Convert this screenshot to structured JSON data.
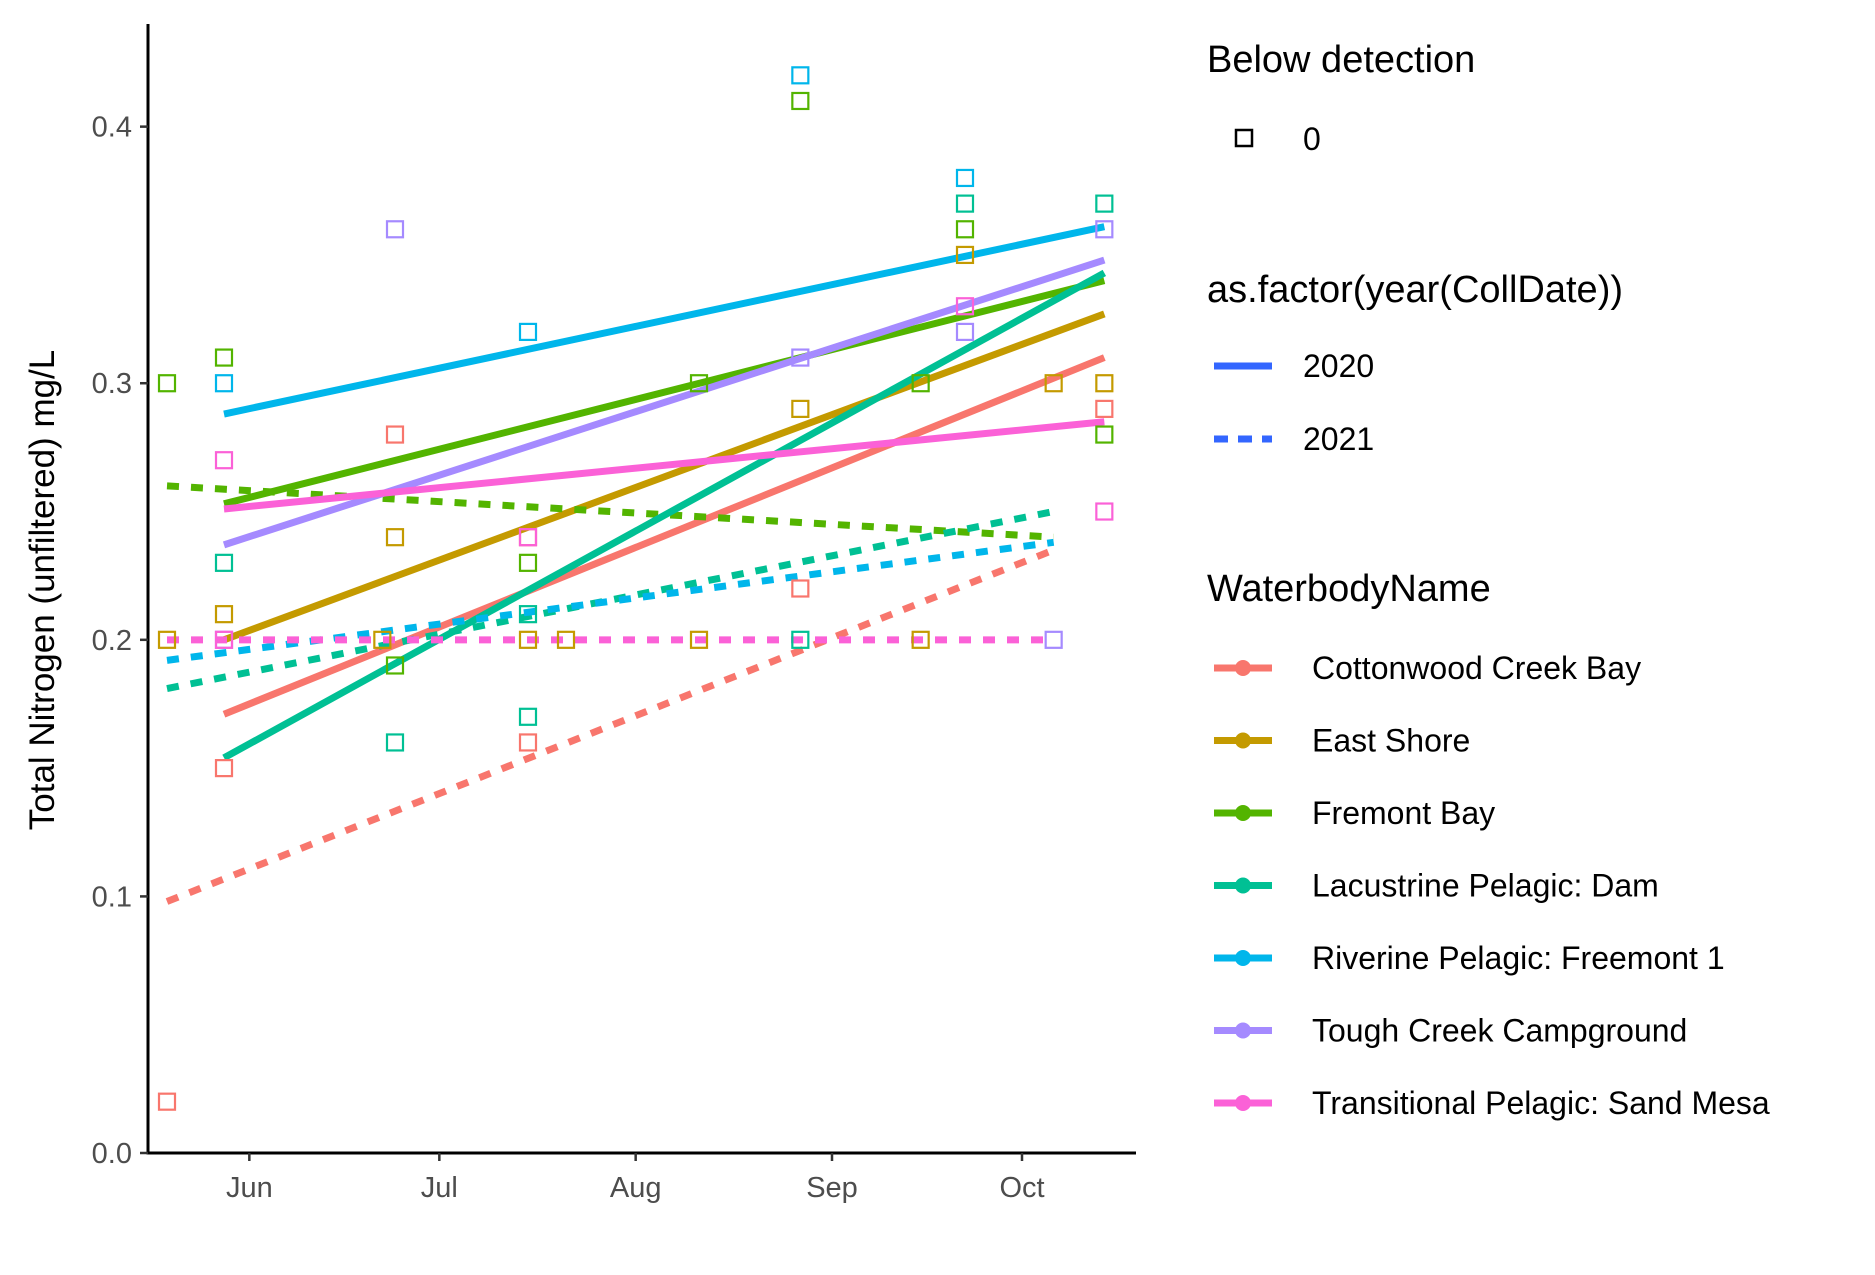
{
  "chart_data": {
    "type": "scatter",
    "title": "",
    "xlabel": "",
    "ylabel": "Total Nitrogen (unfiltered) mg/L",
    "x_ticks": [
      "Jun",
      "Jul",
      "Aug",
      "Sep",
      "Oct"
    ],
    "x_tick_dates": [
      "2020-06-01",
      "2020-07-01",
      "2020-08-01",
      "2020-09-01",
      "2020-10-01"
    ],
    "xlim": [
      "2020-05-16",
      "2020-10-19"
    ],
    "y_ticks": [
      "0.0",
      "0.1",
      "0.2",
      "0.3",
      "0.4"
    ],
    "ylim": [
      0,
      0.44
    ],
    "grid": false,
    "legend_placement": "right",
    "legends": {
      "shape": {
        "title": "Below detection",
        "entries": [
          "0"
        ]
      },
      "linetype": {
        "title": "as.factor(year(CollDate))",
        "entries": [
          "2020",
          "2021"
        ],
        "color": "#3366FF"
      },
      "colour": {
        "title": "WaterbodyName"
      }
    },
    "series": [
      {
        "name": "Cottonwood Creek Bay",
        "color": "#F8766D",
        "points": [
          [
            "2020-05-19",
            0.02
          ],
          [
            "2020-05-28",
            0.15
          ],
          [
            "2020-06-24",
            0.28
          ],
          [
            "2020-07-15",
            0.16
          ],
          [
            "2020-07-15",
            0.24
          ],
          [
            "2020-08-27",
            0.22
          ],
          [
            "2020-10-14",
            0.29
          ]
        ],
        "fit_2020": [
          [
            "2020-05-28",
            0.171
          ],
          [
            "2020-10-14",
            0.31
          ]
        ],
        "fit_2021": [
          [
            "2020-05-19",
            0.098
          ],
          [
            "2020-10-06",
            0.235
          ]
        ]
      },
      {
        "name": "East Shore",
        "color": "#C49A00",
        "points": [
          [
            "2020-05-19",
            0.2
          ],
          [
            "2020-05-28",
            0.21
          ],
          [
            "2020-06-24",
            0.24
          ],
          [
            "2020-06-22",
            0.2
          ],
          [
            "2020-07-15",
            0.2
          ],
          [
            "2020-07-21",
            0.2
          ],
          [
            "2020-08-11",
            0.2
          ],
          [
            "2020-08-27",
            0.29
          ],
          [
            "2020-09-15",
            0.2
          ],
          [
            "2020-09-22",
            0.35
          ],
          [
            "2020-10-06",
            0.3
          ],
          [
            "2020-10-14",
            0.3
          ]
        ],
        "fit_2020": [
          [
            "2020-05-28",
            0.2
          ],
          [
            "2020-10-14",
            0.327
          ]
        ]
      },
      {
        "name": "Fremont Bay",
        "color": "#53B400",
        "points": [
          [
            "2020-05-19",
            0.3
          ],
          [
            "2020-05-28",
            0.31
          ],
          [
            "2020-06-24",
            0.19
          ],
          [
            "2020-07-15",
            0.23
          ],
          [
            "2020-08-11",
            0.3
          ],
          [
            "2020-08-27",
            0.41
          ],
          [
            "2020-09-15",
            0.3
          ],
          [
            "2020-09-22",
            0.36
          ],
          [
            "2020-10-14",
            0.28
          ]
        ],
        "fit_2020": [
          [
            "2020-05-28",
            0.253
          ],
          [
            "2020-10-14",
            0.34
          ]
        ],
        "fit_2021": [
          [
            "2020-05-19",
            0.26
          ],
          [
            "2020-10-06",
            0.24
          ]
        ]
      },
      {
        "name": "Lacustrine Pelagic: Dam",
        "color": "#00C094",
        "points": [
          [
            "2020-05-28",
            0.23
          ],
          [
            "2020-06-24",
            0.16
          ],
          [
            "2020-07-15",
            0.17
          ],
          [
            "2020-07-15",
            0.21
          ],
          [
            "2020-08-27",
            0.2
          ],
          [
            "2020-09-22",
            0.37
          ],
          [
            "2020-10-14",
            0.37
          ]
        ],
        "fit_2020": [
          [
            "2020-05-28",
            0.154
          ],
          [
            "2020-10-14",
            0.343
          ]
        ],
        "fit_2021": [
          [
            "2020-05-19",
            0.181
          ],
          [
            "2020-10-06",
            0.25
          ]
        ]
      },
      {
        "name": "Riverine Pelagic: Freemont 1",
        "color": "#00B6EB",
        "points": [
          [
            "2020-05-28",
            0.3
          ],
          [
            "2020-07-15",
            0.32
          ],
          [
            "2020-08-27",
            0.42
          ],
          [
            "2020-09-22",
            0.38
          ]
        ],
        "fit_2020": [
          [
            "2020-05-28",
            0.288
          ],
          [
            "2020-10-14",
            0.361
          ]
        ],
        "fit_2021": [
          [
            "2020-05-19",
            0.192
          ],
          [
            "2020-10-06",
            0.238
          ]
        ]
      },
      {
        "name": "Tough Creek Campground",
        "color": "#A58AFF",
        "points": [
          [
            "2020-05-28",
            0.2
          ],
          [
            "2020-06-24",
            0.36
          ],
          [
            "2020-08-27",
            0.31
          ],
          [
            "2020-09-22",
            0.32
          ],
          [
            "2020-10-06",
            0.2
          ],
          [
            "2020-10-14",
            0.36
          ]
        ],
        "fit_2020": [
          [
            "2020-05-28",
            0.237
          ],
          [
            "2020-10-14",
            0.348
          ]
        ]
      },
      {
        "name": "Transitional Pelagic: Sand Mesa",
        "color": "#FB61D7",
        "points": [
          [
            "2020-05-28",
            0.27
          ],
          [
            "2020-05-28",
            0.2
          ],
          [
            "2020-07-15",
            0.24
          ],
          [
            "2020-09-22",
            0.33
          ],
          [
            "2020-10-14",
            0.25
          ]
        ],
        "fit_2020": [
          [
            "2020-05-28",
            0.251
          ],
          [
            "2020-10-14",
            0.285
          ]
        ],
        "fit_2021": [
          [
            "2020-05-19",
            0.2
          ],
          [
            "2020-10-06",
            0.2
          ]
        ]
      }
    ]
  }
}
